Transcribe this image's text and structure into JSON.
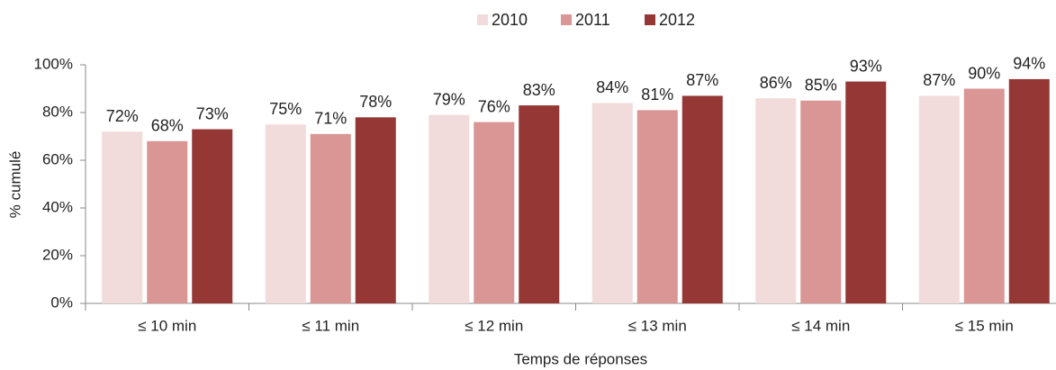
{
  "chart_data": {
    "type": "bar",
    "categories": [
      "≤ 10 min",
      "≤ 11 min",
      "≤ 12 min",
      "≤ 13 min",
      "≤ 14 min",
      "≤ 15 min"
    ],
    "series": [
      {
        "name": "2010",
        "color": "#f2dcdb",
        "values": [
          72,
          75,
          79,
          84,
          86,
          87
        ],
        "value_labels": [
          "72%",
          "75%",
          "79%",
          "84%",
          "86%",
          "87%"
        ]
      },
      {
        "name": "2011",
        "color": "#d99694",
        "values": [
          68,
          71,
          76,
          81,
          85,
          90
        ],
        "value_labels": [
          "68%",
          "71%",
          "76%",
          "81%",
          "85%",
          "90%"
        ]
      },
      {
        "name": "2012",
        "color": "#953735",
        "values": [
          73,
          78,
          83,
          87,
          93,
          94
        ],
        "value_labels": [
          "73%",
          "78%",
          "83%",
          "87%",
          "93%",
          "94%"
        ]
      }
    ],
    "ylim": [
      0,
      100
    ],
    "yticks": [
      {
        "value": 0,
        "label": "0%"
      },
      {
        "value": 20,
        "label": "20%"
      },
      {
        "value": 40,
        "label": "40%"
      },
      {
        "value": 60,
        "label": "60%"
      },
      {
        "value": 80,
        "label": "80%"
      },
      {
        "value": 100,
        "label": "100%"
      }
    ],
    "y_label": "% cumulé",
    "x_label": "Temps de réponses",
    "legend": "top",
    "grid": false
  }
}
